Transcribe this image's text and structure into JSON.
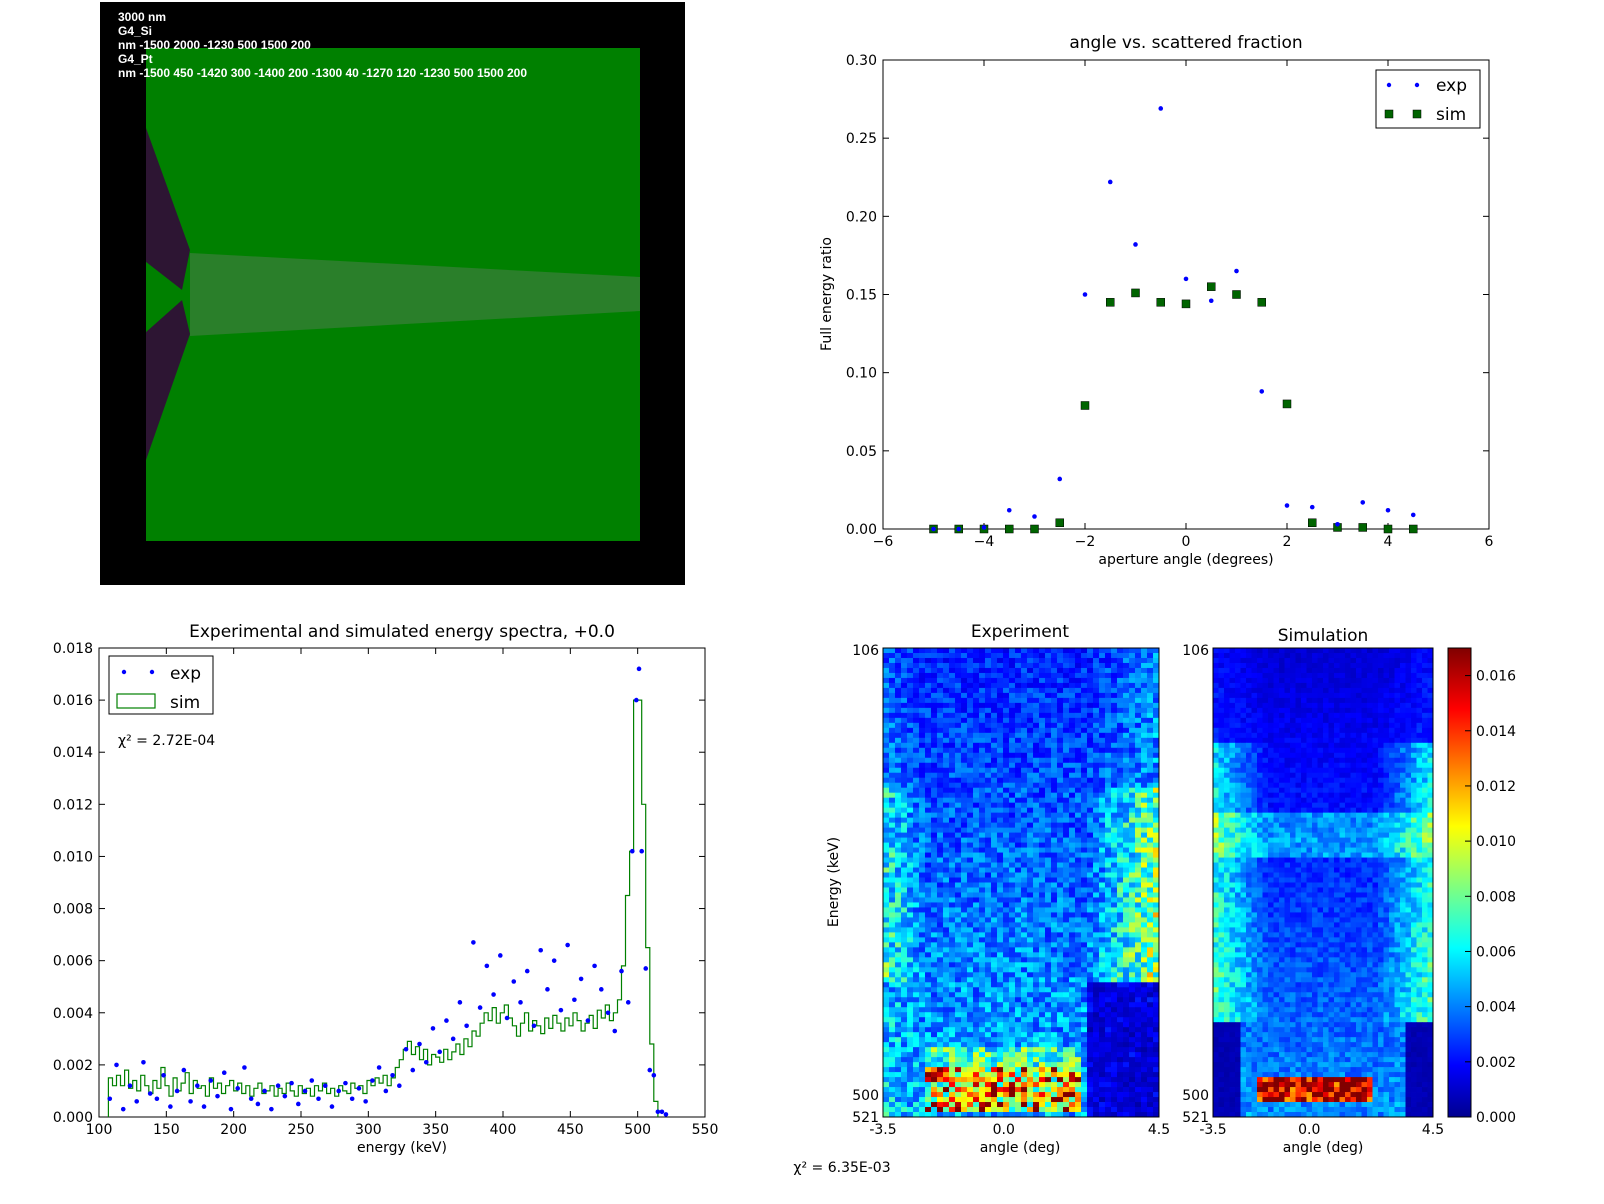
{
  "colors": {
    "exp": "#0000ff",
    "sim": "#008000",
    "sim_marker": "#006400",
    "geometry_background": "#000000",
    "geometry_si": "#008000",
    "geometry_pt": "#2d1533",
    "geometry_beam": "#2a7f2a"
  },
  "geometry_panel": {
    "text_lines": [
      "3000 nm",
      "G4_Si",
      "nm -1500 2000 -1230 500 1500 200",
      "G4_Pt",
      "nm -1500 450 -1420 300 -1400 200 -1300 40 -1270 120 -1230 500 1500 200"
    ]
  },
  "chart_data": [
    {
      "type": "scatter",
      "title": "angle vs. scattered fraction",
      "xlabel": "aperture angle (degrees)",
      "ylabel": "Full energy ratio",
      "xlim": [
        -6,
        6
      ],
      "ylim": [
        0,
        0.3
      ],
      "xticks": [
        -6,
        -4,
        -2,
        0,
        2,
        4,
        6
      ],
      "xtick_labels": [
        "−6",
        "−4",
        "−2",
        "0",
        "2",
        "4",
        "6"
      ],
      "yticks": [
        0,
        0.05,
        0.1,
        0.15,
        0.2,
        0.25,
        0.3
      ],
      "ytick_labels": [
        "0.00",
        "0.05",
        "0.10",
        "0.15",
        "0.20",
        "0.25",
        "0.30"
      ],
      "legend_position": "top-right",
      "series": [
        {
          "name": "exp",
          "marker": "dot",
          "x": [
            -5,
            -4.5,
            -4,
            -3.5,
            -3,
            -2.5,
            -2,
            -1.5,
            -1,
            -0.5,
            0,
            0.5,
            1,
            1.5,
            2,
            2.5,
            3,
            3.5,
            4,
            4.5
          ],
          "y": [
            0.0,
            0.0,
            0.001,
            0.012,
            0.008,
            0.032,
            0.15,
            0.222,
            0.182,
            0.269,
            0.16,
            0.146,
            0.165,
            0.088,
            0.015,
            0.014,
            0.003,
            0.017,
            0.012,
            0.009
          ]
        },
        {
          "name": "sim",
          "marker": "square",
          "x": [
            -5,
            -4.5,
            -4,
            -3.5,
            -3,
            -2.5,
            -2,
            -1.5,
            -1,
            -0.5,
            0,
            0.5,
            1,
            1.5,
            2,
            2.5,
            3,
            3.5,
            4,
            4.5
          ],
          "y": [
            0.0,
            0.0,
            0.0,
            0.0,
            0.0,
            0.004,
            0.079,
            0.145,
            0.151,
            0.145,
            0.144,
            0.155,
            0.15,
            0.145,
            0.08,
            0.004,
            0.001,
            0.001,
            0.0,
            0.0
          ]
        }
      ]
    },
    {
      "type": "line",
      "title": "Experimental and simulated energy spectra, +0.0",
      "xlabel": "energy (keV)",
      "ylabel": "",
      "xlim": [
        100,
        550
      ],
      "ylim": [
        0,
        0.018
      ],
      "xticks": [
        100,
        150,
        200,
        250,
        300,
        350,
        400,
        450,
        500,
        550
      ],
      "xtick_labels": [
        "100",
        "150",
        "200",
        "250",
        "300",
        "350",
        "400",
        "450",
        "500",
        "550"
      ],
      "yticks": [
        0,
        0.002,
        0.004,
        0.006,
        0.008,
        0.01,
        0.012,
        0.014,
        0.016,
        0.018
      ],
      "ytick_labels": [
        "0.000",
        "0.002",
        "0.004",
        "0.006",
        "0.008",
        "0.010",
        "0.012",
        "0.014",
        "0.016",
        "0.018"
      ],
      "legend_position": "top-left",
      "annotation": "χ² = 2.72E-04",
      "series": [
        {
          "name": "exp",
          "marker": "dot",
          "x": [
            108,
            113,
            118,
            123,
            128,
            133,
            138,
            143,
            148,
            153,
            158,
            163,
            168,
            173,
            178,
            183,
            188,
            193,
            198,
            203,
            208,
            213,
            218,
            223,
            228,
            233,
            238,
            243,
            248,
            253,
            258,
            263,
            268,
            273,
            278,
            283,
            288,
            293,
            298,
            303,
            308,
            313,
            318,
            323,
            328,
            333,
            338,
            343,
            348,
            353,
            358,
            363,
            368,
            373,
            378,
            383,
            388,
            393,
            398,
            403,
            408,
            413,
            418,
            423,
            428,
            433,
            438,
            443,
            448,
            453,
            458,
            463,
            468,
            473,
            478,
            483,
            488,
            493,
            496,
            499,
            501,
            503,
            506,
            509,
            512,
            515,
            518,
            521
          ],
          "y": [
            0.0007,
            0.002,
            0.0003,
            0.0012,
            0.0006,
            0.0021,
            0.0009,
            0.0007,
            0.0016,
            0.0004,
            0.001,
            0.0018,
            0.0006,
            0.0012,
            0.0004,
            0.0014,
            0.0008,
            0.0017,
            0.0003,
            0.0011,
            0.0019,
            0.0007,
            0.0005,
            0.001,
            0.0003,
            0.0012,
            0.0008,
            0.0013,
            0.0005,
            0.001,
            0.0014,
            0.0007,
            0.0012,
            0.0004,
            0.001,
            0.0013,
            0.0007,
            0.0011,
            0.0006,
            0.0014,
            0.0019,
            0.001,
            0.0016,
            0.0012,
            0.0026,
            0.0018,
            0.0028,
            0.0021,
            0.0034,
            0.0025,
            0.0037,
            0.003,
            0.0044,
            0.0035,
            0.0067,
            0.0042,
            0.0058,
            0.0047,
            0.0062,
            0.0038,
            0.0052,
            0.0044,
            0.0056,
            0.0035,
            0.0064,
            0.0049,
            0.006,
            0.0041,
            0.0066,
            0.0045,
            0.0053,
            0.0037,
            0.0058,
            0.0049,
            0.004,
            0.0033,
            0.0056,
            0.0044,
            0.0102,
            0.016,
            0.0172,
            0.0102,
            0.0057,
            0.0018,
            0.0016,
            0.0002,
            0.0002,
            0.0001
          ]
        },
        {
          "name": "sim",
          "style": "step",
          "x": [
            107,
            110,
            113,
            116,
            119,
            122,
            125,
            128,
            131,
            134,
            137,
            140,
            143,
            146,
            149,
            152,
            155,
            158,
            161,
            164,
            167,
            170,
            173,
            176,
            179,
            182,
            185,
            188,
            191,
            194,
            197,
            200,
            203,
            206,
            209,
            212,
            215,
            218,
            221,
            224,
            227,
            230,
            233,
            236,
            239,
            242,
            245,
            248,
            251,
            254,
            257,
            260,
            263,
            266,
            269,
            272,
            275,
            278,
            281,
            284,
            287,
            290,
            293,
            296,
            299,
            302,
            305,
            308,
            311,
            314,
            317,
            320,
            323,
            326,
            329,
            332,
            335,
            338,
            341,
            344,
            347,
            350,
            353,
            356,
            359,
            362,
            365,
            368,
            371,
            374,
            377,
            380,
            383,
            386,
            389,
            392,
            395,
            398,
            401,
            404,
            407,
            410,
            413,
            416,
            419,
            422,
            425,
            428,
            431,
            434,
            437,
            440,
            443,
            446,
            449,
            452,
            455,
            458,
            461,
            464,
            467,
            470,
            473,
            476,
            479,
            482,
            485,
            488,
            491,
            494,
            497,
            500,
            503,
            506,
            509,
            512
          ],
          "y": [
            0.0015,
            0.0012,
            0.0016,
            0.0012,
            0.0018,
            0.0011,
            0.0014,
            0.001,
            0.0016,
            0.0012,
            0.0009,
            0.0014,
            0.0011,
            0.0019,
            0.0012,
            0.0008,
            0.0015,
            0.001,
            0.0013,
            0.0017,
            0.0009,
            0.0014,
            0.0011,
            0.0012,
            0.0008,
            0.0015,
            0.0011,
            0.0013,
            0.0009,
            0.0012,
            0.0014,
            0.001,
            0.0013,
            0.0009,
            0.0012,
            0.0008,
            0.0011,
            0.0013,
            0.0009,
            0.001,
            0.0012,
            0.0008,
            0.0011,
            0.0009,
            0.0013,
            0.001,
            0.0008,
            0.0012,
            0.0009,
            0.0011,
            0.0008,
            0.0012,
            0.001,
            0.0013,
            0.0009,
            0.0011,
            0.0008,
            0.0012,
            0.001,
            0.0009,
            0.0013,
            0.0011,
            0.0012,
            0.0009,
            0.0014,
            0.0012,
            0.0015,
            0.0013,
            0.0016,
            0.0012,
            0.0015,
            0.0019,
            0.0022,
            0.0026,
            0.0029,
            0.0024,
            0.0027,
            0.0022,
            0.0026,
            0.002,
            0.0024,
            0.0023,
            0.0021,
            0.0026,
            0.0022,
            0.0025,
            0.0028,
            0.0024,
            0.003,
            0.0027,
            0.0033,
            0.0031,
            0.0036,
            0.004,
            0.0037,
            0.0042,
            0.0036,
            0.004,
            0.0043,
            0.0038,
            0.0035,
            0.0031,
            0.0036,
            0.004,
            0.0033,
            0.0037,
            0.0035,
            0.0032,
            0.0038,
            0.0034,
            0.0039,
            0.0036,
            0.0033,
            0.0038,
            0.0035,
            0.004,
            0.0037,
            0.0033,
            0.0036,
            0.0039,
            0.0034,
            0.0041,
            0.0038,
            0.0043,
            0.0037,
            0.004,
            0.0045,
            0.0058,
            0.0085,
            0.0102,
            0.016,
            0.016,
            0.012,
            0.0065,
            0.0028,
            0.0006
          ]
        }
      ]
    },
    {
      "type": "heatmap",
      "title": "Experiment",
      "xlabel": "angle (deg)",
      "ylabel": "Energy (keV)",
      "xlim": [
        -3.5,
        4.5
      ],
      "xtick_labels": [
        "-3.5",
        "0.0",
        "4.5"
      ],
      "ylim": [
        521,
        106
      ],
      "ytick_labels": [
        "106",
        "500",
        "521"
      ],
      "annotation": "χ² = 6.35E-03"
    },
    {
      "type": "heatmap",
      "title": "Simulation",
      "xlabel": "angle (deg)",
      "xlim": [
        -3.5,
        4.5
      ],
      "xtick_labels": [
        "-3.5",
        "0.0",
        "4.5"
      ],
      "ylim": [
        521,
        106
      ],
      "ytick_labels": [
        "106",
        "500",
        "521"
      ],
      "colorbar": {
        "range": [
          0,
          0.017
        ],
        "tick_labels": [
          "0.000",
          "0.002",
          "0.004",
          "0.006",
          "0.008",
          "0.010",
          "0.012",
          "0.014",
          "0.016"
        ]
      }
    }
  ]
}
